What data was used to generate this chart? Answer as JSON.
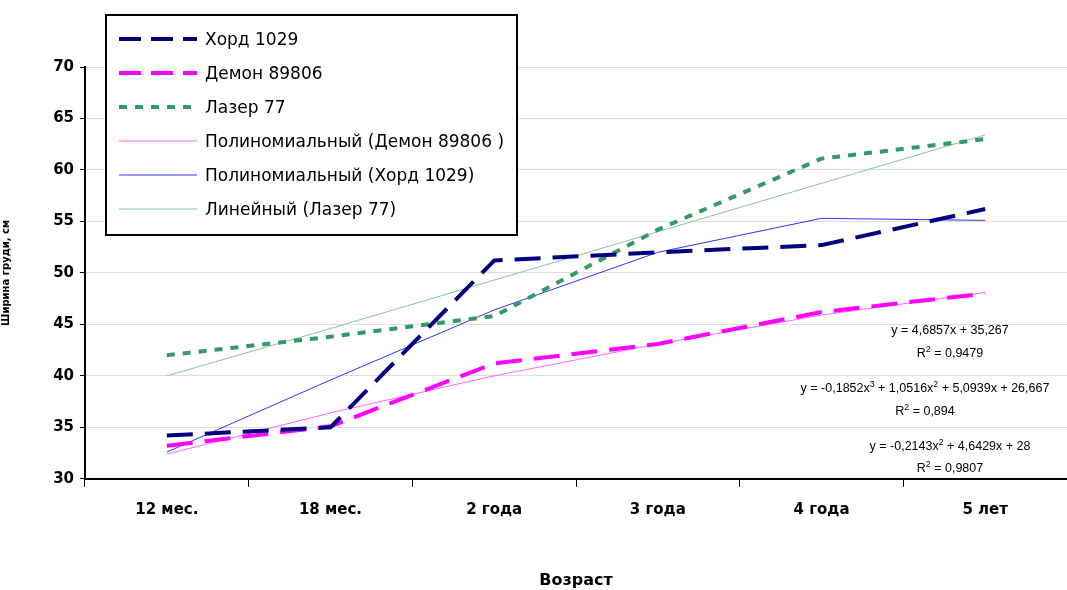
{
  "chart_data": {
    "type": "line",
    "xlabel": "Возраст",
    "ylabel": "Ширина груди, см",
    "categories": [
      "12 мес.",
      "18 мес.",
      "2 года",
      "3 года",
      "4 года",
      "5 лет"
    ],
    "series": [
      {
        "name": "Хорд 1029",
        "color": "#000080",
        "line_style": "dashed",
        "values": [
          34.2,
          35,
          51.2,
          52,
          52.7,
          56.2
        ]
      },
      {
        "name": "Демон 89806",
        "color": "#ff00ff",
        "line_style": "dashed",
        "values": [
          33.2,
          35.1,
          41.2,
          43.1,
          46.2,
          48
        ]
      },
      {
        "name": "Лазер 77",
        "color": "#339966",
        "line_style": "dotted",
        "values": [
          42,
          43.8,
          45.8,
          54.2,
          61.1,
          63
        ]
      },
      {
        "name": "Полиномиальный (Демон 89806 )",
        "color": "#ff66ff",
        "line_style": "solid",
        "values": [
          32.4,
          36.4,
          40,
          43.1,
          45.9,
          48.1
        ]
      },
      {
        "name": "Полиномиальный (Хорд 1029)",
        "color": "#3333ff",
        "line_style": "solid",
        "values": [
          32.6,
          39.6,
          46.4,
          52,
          55.3,
          55.1
        ]
      },
      {
        "name": "Линейный (Лазер 77)",
        "color": "#88c4a0",
        "line_style": "solid",
        "values": [
          40,
          44.6,
          49.3,
          54,
          58.7,
          63.4
        ]
      }
    ],
    "ylim": [
      30,
      70
    ],
    "yticks": [
      30,
      35,
      40,
      45,
      50,
      55,
      60,
      65,
      70
    ],
    "grid": "y",
    "legend": "top left",
    "marker": "none",
    "annotations": [
      "y = 4,6857x + 35,267",
      "R$^{2}$ = 0,9479",
      "y = -0,1852x$^{3}$ + 1,0516x$^{2}$ + 5,0939x + 26,667",
      "R$^{2}$ = 0,894",
      "y = -0,2143x$^{2}$ + 4,6429x + 28",
      "R$^{2}$ = 0,9807"
    ]
  }
}
